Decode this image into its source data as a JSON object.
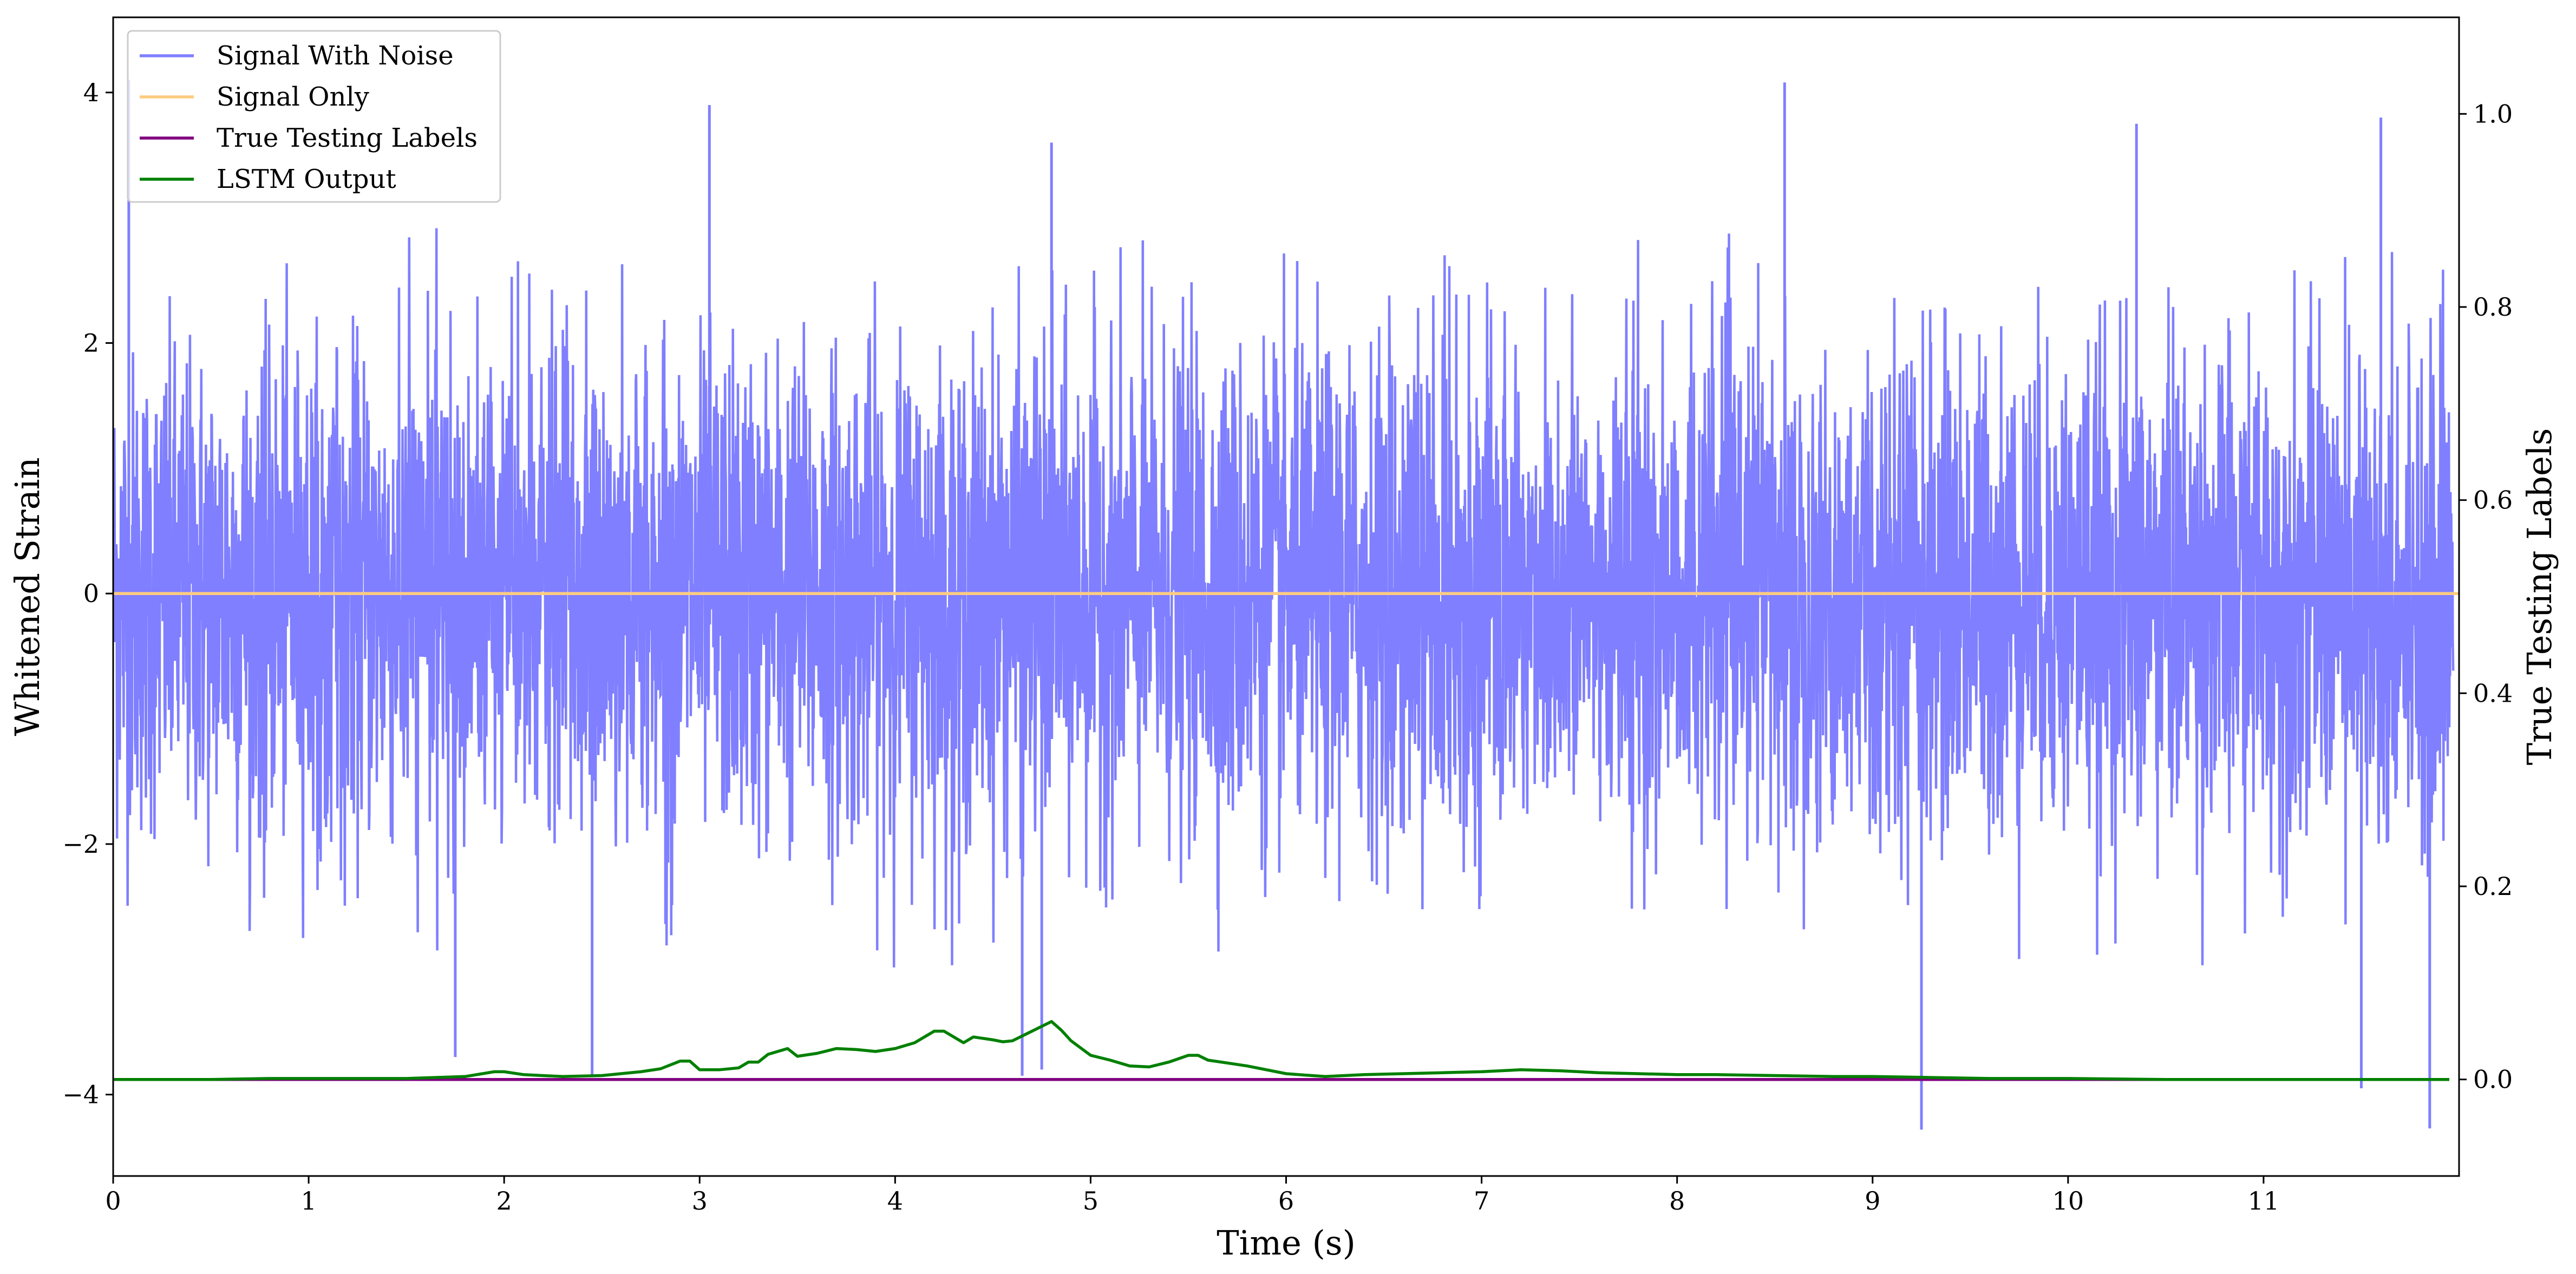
{
  "chart_data": {
    "type": "line",
    "xlabel": "Time (s)",
    "ylabel": "Whitened Strain",
    "y2label": "True Testing Labels",
    "xlim": [
      0,
      12
    ],
    "ylim": [
      -4.65,
      4.6
    ],
    "y2lim": [
      -0.1,
      1.1
    ],
    "xticks": [
      0,
      1,
      2,
      3,
      4,
      5,
      6,
      7,
      8,
      9,
      10,
      11
    ],
    "yticks": [
      -4,
      -2,
      0,
      2,
      4
    ],
    "yticklabels": [
      "−4",
      "−2",
      "0",
      "2",
      "4"
    ],
    "y2ticks": [
      0.0,
      0.2,
      0.4,
      0.6,
      0.8,
      1.0
    ],
    "y2ticklabels": [
      "0.0",
      "0.2",
      "0.4",
      "0.6",
      "0.8",
      "1.0"
    ],
    "legend_position": "top-left",
    "grid": false,
    "series": [
      {
        "name": "Signal With Noise",
        "color": "#7f7fff",
        "axis": "left",
        "style": "noise",
        "envelope_typical": 2.3,
        "y_max": 4.08,
        "y_min": -4.28,
        "spikes": [
          {
            "x": 0.08,
            "y": 4.1
          },
          {
            "x": 3.05,
            "y": 3.9
          },
          {
            "x": 4.8,
            "y": 3.6
          },
          {
            "x": 8.55,
            "y": 4.08
          },
          {
            "x": 10.35,
            "y": 3.75
          },
          {
            "x": 11.6,
            "y": 3.8
          },
          {
            "x": 1.75,
            "y": -3.7
          },
          {
            "x": 2.45,
            "y": -3.85
          },
          {
            "x": 4.65,
            "y": -3.85
          },
          {
            "x": 4.75,
            "y": -3.8
          },
          {
            "x": 9.25,
            "y": -4.28
          },
          {
            "x": 11.5,
            "y": -3.95
          },
          {
            "x": 11.85,
            "y": -4.27
          }
        ]
      },
      {
        "name": "Signal Only",
        "color": "#ffcc80",
        "axis": "left",
        "x": [
          0,
          12
        ],
        "y": [
          0,
          0
        ]
      },
      {
        "name": "True Testing Labels",
        "color": "#800080",
        "axis": "right",
        "x": [
          0,
          11.95
        ],
        "y": [
          0,
          0
        ]
      },
      {
        "name": "LSTM Output",
        "color": "#008000",
        "axis": "right",
        "x": [
          0.0,
          0.5,
          0.8,
          1.0,
          1.5,
          1.8,
          1.95,
          2.0,
          2.1,
          2.3,
          2.5,
          2.7,
          2.8,
          2.9,
          2.95,
          3.0,
          3.1,
          3.2,
          3.25,
          3.3,
          3.35,
          3.45,
          3.5,
          3.6,
          3.7,
          3.8,
          3.9,
          4.0,
          4.1,
          4.2,
          4.25,
          4.35,
          4.4,
          4.5,
          4.55,
          4.6,
          4.7,
          4.8,
          4.85,
          4.9,
          5.0,
          5.1,
          5.2,
          5.3,
          5.4,
          5.5,
          5.55,
          5.6,
          5.7,
          5.8,
          6.0,
          6.2,
          6.4,
          6.6,
          6.8,
          7.0,
          7.2,
          7.4,
          7.6,
          7.8,
          8.0,
          8.2,
          8.5,
          8.8,
          9.0,
          9.3,
          9.6,
          10.0,
          10.5,
          11.0,
          11.5,
          11.95
        ],
        "y": [
          0.0,
          0.0,
          0.001,
          0.001,
          0.001,
          0.003,
          0.008,
          0.008,
          0.005,
          0.003,
          0.004,
          0.008,
          0.011,
          0.019,
          0.019,
          0.01,
          0.01,
          0.012,
          0.018,
          0.018,
          0.026,
          0.032,
          0.024,
          0.027,
          0.032,
          0.031,
          0.029,
          0.032,
          0.038,
          0.05,
          0.05,
          0.038,
          0.044,
          0.041,
          0.039,
          0.04,
          0.05,
          0.06,
          0.051,
          0.04,
          0.025,
          0.02,
          0.014,
          0.013,
          0.018,
          0.025,
          0.025,
          0.02,
          0.017,
          0.014,
          0.006,
          0.003,
          0.005,
          0.006,
          0.007,
          0.008,
          0.01,
          0.009,
          0.007,
          0.006,
          0.005,
          0.005,
          0.004,
          0.003,
          0.003,
          0.002,
          0.001,
          0.001,
          0.0,
          0.0,
          0.0,
          0.0
        ]
      }
    ]
  }
}
